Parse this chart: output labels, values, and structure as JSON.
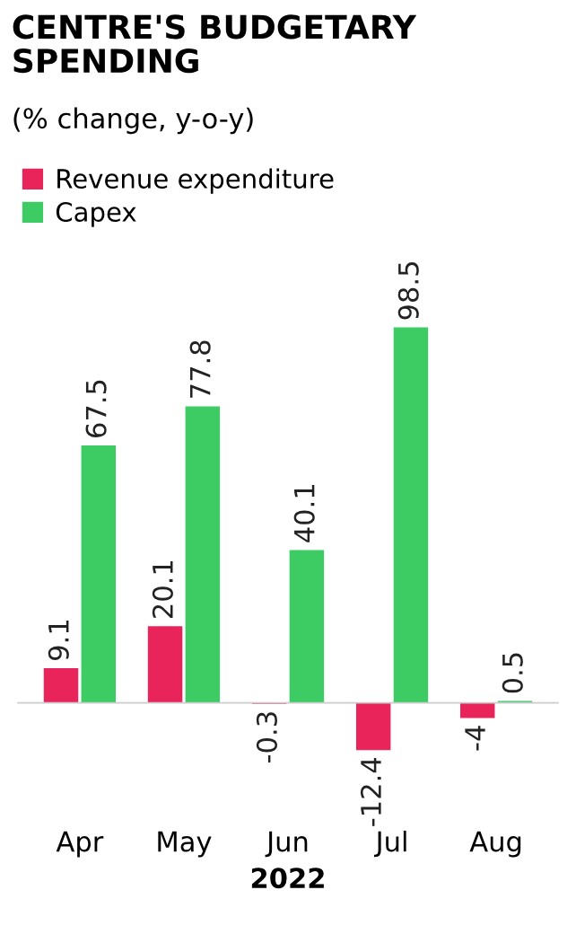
{
  "chart_data": {
    "type": "bar",
    "title": "CENTRE'S BUDGETARY\nSPENDING",
    "subtitle": "(% change, y-o-y)",
    "xlabel": "2022",
    "categories": [
      "Apr",
      "May",
      "Jun",
      "Jul",
      "Aug"
    ],
    "series": [
      {
        "name": "Revenue expenditure",
        "color": "#e8245a",
        "values": [
          9.1,
          20.1,
          -0.3,
          -12.4,
          -4
        ]
      },
      {
        "name": "Capex",
        "color": "#3dcc63",
        "values": [
          67.5,
          77.8,
          40.1,
          98.5,
          0.5
        ]
      }
    ],
    "data_labels": true,
    "legend": "top left",
    "grid": false
  }
}
